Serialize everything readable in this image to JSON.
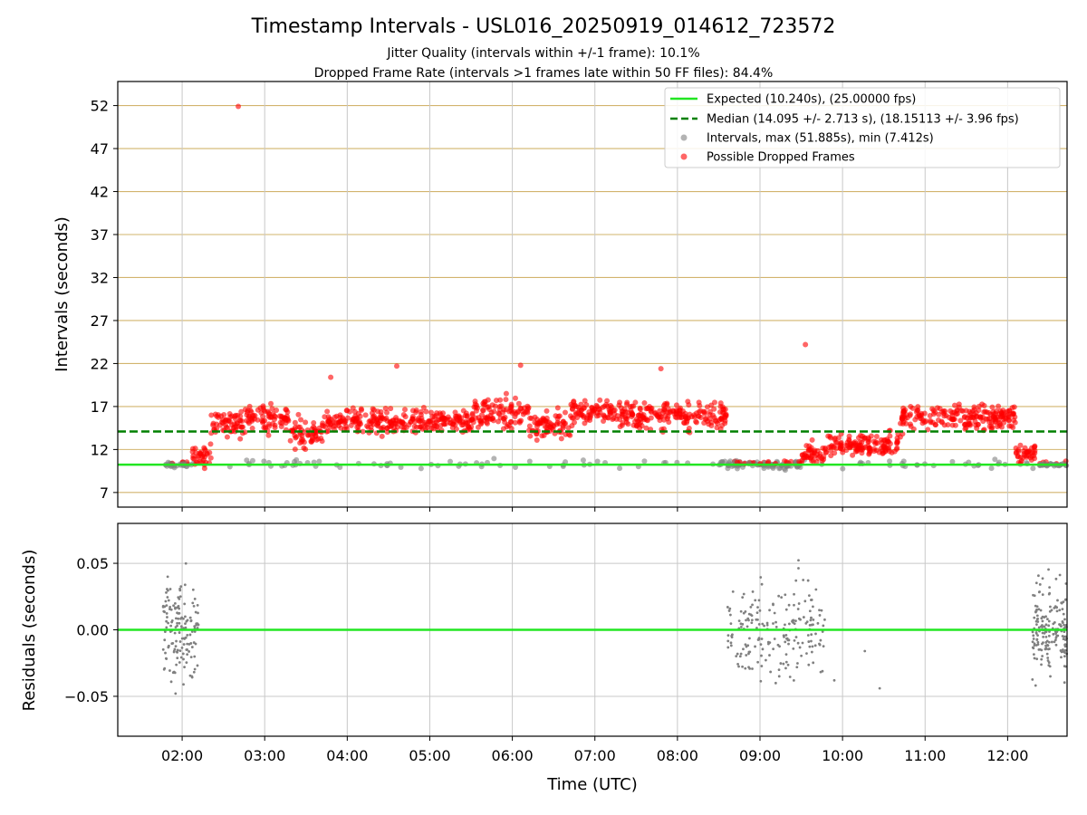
{
  "title": "Timestamp Intervals - USL016_20250919_014612_723572",
  "subtitle_1": "Jitter Quality (intervals within +/-1 frame): 10.1%",
  "subtitle_2": "Dropped Frame Rate (intervals >1 frames late within 50 FF files): 84.4%",
  "colors": {
    "expected": "#22e622",
    "median": "#008000",
    "intervals": "#808080",
    "dropped": "#ff0000",
    "hgrid_top": "#d2b46e",
    "grid": "#c8c8c8"
  },
  "chart_data": [
    {
      "type": "scatter",
      "xlabel": "",
      "ylabel": "Intervals (seconds)",
      "xlim": [
        1.22,
        12.72
      ],
      "ylim": [
        5.3,
        54.8
      ],
      "y_ticks": [
        7,
        12,
        17,
        22,
        27,
        32,
        37,
        42,
        47,
        52
      ],
      "x_ticks": [
        2,
        3,
        4,
        5,
        6,
        7,
        8,
        9,
        10,
        11,
        12
      ],
      "hgrid": true,
      "vgrid": true,
      "legend_position": "top-right",
      "legend": [
        "Expected (10.240s), (25.00000 fps)",
        "Median (14.095 +/- 2.713 s), (18.15113 +/- 3.96 fps)",
        "Intervals, max (51.885s), min (7.412s)",
        "Possible Dropped Frames"
      ],
      "expected_line": 10.24,
      "median_line": 14.095,
      "segments": [
        {
          "start": 1.77,
          "end": 2.12,
          "level": 10.24,
          "spread": 0.25,
          "dropped": false
        },
        {
          "start": 2.12,
          "end": 2.35,
          "level": 11.2,
          "spread": 1.2,
          "dropped": true
        },
        {
          "start": 2.35,
          "end": 2.75,
          "level": 15.0,
          "spread": 1.6,
          "dropped": true
        },
        {
          "start": 2.75,
          "end": 3.3,
          "level": 15.8,
          "spread": 1.4,
          "dropped": true
        },
        {
          "start": 3.3,
          "end": 3.7,
          "level": 13.8,
          "spread": 1.5,
          "dropped": true
        },
        {
          "start": 3.7,
          "end": 4.5,
          "level": 15.2,
          "spread": 1.4,
          "dropped": true
        },
        {
          "start": 4.5,
          "end": 5.5,
          "level": 15.2,
          "spread": 1.3,
          "dropped": true
        },
        {
          "start": 5.5,
          "end": 6.2,
          "level": 16.2,
          "spread": 1.5,
          "dropped": true
        },
        {
          "start": 6.2,
          "end": 6.7,
          "level": 14.8,
          "spread": 1.4,
          "dropped": true
        },
        {
          "start": 6.7,
          "end": 7.5,
          "level": 16.3,
          "spread": 1.5,
          "dropped": true
        },
        {
          "start": 7.5,
          "end": 8.6,
          "level": 16.0,
          "spread": 1.5,
          "dropped": true
        },
        {
          "start": 8.6,
          "end": 9.0,
          "level": 10.24,
          "spread": 0.4,
          "dropped": false
        },
        {
          "start": 9.0,
          "end": 9.5,
          "level": 10.24,
          "spread": 0.4,
          "dropped": false
        },
        {
          "start": 9.5,
          "end": 9.8,
          "level": 11.5,
          "spread": 1.3,
          "dropped": true
        },
        {
          "start": 9.8,
          "end": 10.7,
          "level": 12.5,
          "spread": 1.3,
          "dropped": true
        },
        {
          "start": 10.7,
          "end": 12.1,
          "level": 15.8,
          "spread": 1.4,
          "dropped": true
        },
        {
          "start": 12.1,
          "end": 12.35,
          "level": 11.5,
          "spread": 1.0,
          "dropped": true
        },
        {
          "start": 12.35,
          "end": 12.72,
          "level": 10.24,
          "spread": 0.2,
          "dropped": false
        }
      ],
      "outliers": [
        [
          2.68,
          51.9
        ],
        [
          9.55,
          24.2
        ],
        [
          6.1,
          21.8
        ],
        [
          4.6,
          21.7
        ],
        [
          3.8,
          20.4
        ],
        [
          7.8,
          21.4
        ]
      ]
    },
    {
      "type": "scatter",
      "xlabel": "Time (UTC)",
      "ylabel": "Residuals (seconds)",
      "xlim": [
        1.22,
        12.72
      ],
      "ylim": [
        -0.08,
        0.08
      ],
      "y_ticks": [
        0.05,
        0.0,
        -0.05
      ],
      "y_tick_labels": [
        "0.05",
        "0.00",
        "−0.05"
      ],
      "x_ticks": [
        2,
        3,
        4,
        5,
        6,
        7,
        8,
        9,
        10,
        11,
        12
      ],
      "x_tick_labels": [
        "02:00",
        "03:00",
        "04:00",
        "05:00",
        "06:00",
        "07:00",
        "08:00",
        "09:00",
        "10:00",
        "11:00",
        "12:00"
      ],
      "zero_line": 0.0,
      "clusters": [
        {
          "start": 1.77,
          "end": 2.2,
          "count": 150
        },
        {
          "start": 8.6,
          "end": 9.8,
          "count": 200
        },
        {
          "start": 12.3,
          "end": 12.72,
          "count": 180
        }
      ],
      "isolated": [
        [
          9.9,
          -0.038
        ],
        [
          10.27,
          -0.016
        ],
        [
          10.45,
          -0.044
        ]
      ]
    }
  ]
}
